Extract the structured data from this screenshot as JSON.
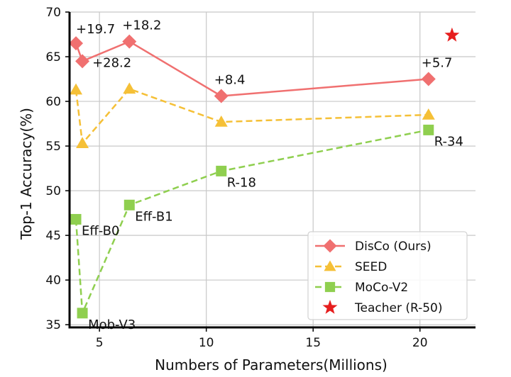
{
  "chart_data": {
    "type": "line",
    "title": "",
    "xlabel": "Numbers of Parameters(Millions)",
    "ylabel": "Top-1 Accuracy(%)",
    "xlim": [
      3.6,
      22.6
    ],
    "ylim": [
      34.7,
      70
    ],
    "xticks": [
      5,
      10,
      15,
      20
    ],
    "yticks": [
      35,
      40,
      45,
      50,
      55,
      60,
      65,
      70
    ],
    "grid": true,
    "legend_position": "bottom-right",
    "series": [
      {
        "name": "DisCo (Ours)",
        "color": "#f07070",
        "marker": "diamond",
        "linestyle": "solid",
        "x": [
          3.9,
          4.2,
          6.4,
          10.7,
          20.4
        ],
        "y": [
          66.5,
          64.5,
          66.7,
          60.6,
          62.5
        ]
      },
      {
        "name": "SEED",
        "color": "#f5c037",
        "marker": "triangle",
        "linestyle": "dashed",
        "x": [
          3.9,
          4.2,
          6.4,
          10.7,
          20.4
        ],
        "y": [
          61.3,
          55.3,
          61.4,
          57.7,
          58.5
        ]
      },
      {
        "name": "MoCo-V2",
        "color": "#8fcf4f",
        "marker": "square",
        "linestyle": "dashed",
        "x": [
          3.9,
          4.2,
          6.4,
          10.7,
          20.4
        ],
        "y": [
          46.8,
          36.3,
          48.4,
          52.2,
          56.8
        ]
      },
      {
        "name": "Teacher (R-50)",
        "color": "#e61e1e",
        "marker": "star",
        "linestyle": "none",
        "x": [
          21.5
        ],
        "y": [
          67.4
        ]
      }
    ],
    "annotations": [
      {
        "text": "+19.7",
        "x": 3.9,
        "y": 66.5,
        "pos": "above-right"
      },
      {
        "text": "+28.2",
        "x": 4.2,
        "y": 64.5,
        "pos": "right"
      },
      {
        "text": "+18.2",
        "x": 6.4,
        "y": 66.7,
        "pos": "above"
      },
      {
        "text": "+8.4",
        "x": 10.7,
        "y": 60.6,
        "pos": "above"
      },
      {
        "text": "+5.7",
        "x": 20.4,
        "y": 62.5,
        "pos": "above"
      },
      {
        "text": "Eff-B0",
        "x": 3.9,
        "y": 46.8,
        "pos": "below-right"
      },
      {
        "text": "Mob-V3",
        "x": 4.2,
        "y": 36.3,
        "pos": "below-right"
      },
      {
        "text": "Eff-B1",
        "x": 6.4,
        "y": 48.4,
        "pos": "below-right"
      },
      {
        "text": "R-18",
        "x": 10.7,
        "y": 52.2,
        "pos": "below-right"
      },
      {
        "text": "R-34",
        "x": 20.4,
        "y": 56.8,
        "pos": "below-right"
      }
    ]
  }
}
